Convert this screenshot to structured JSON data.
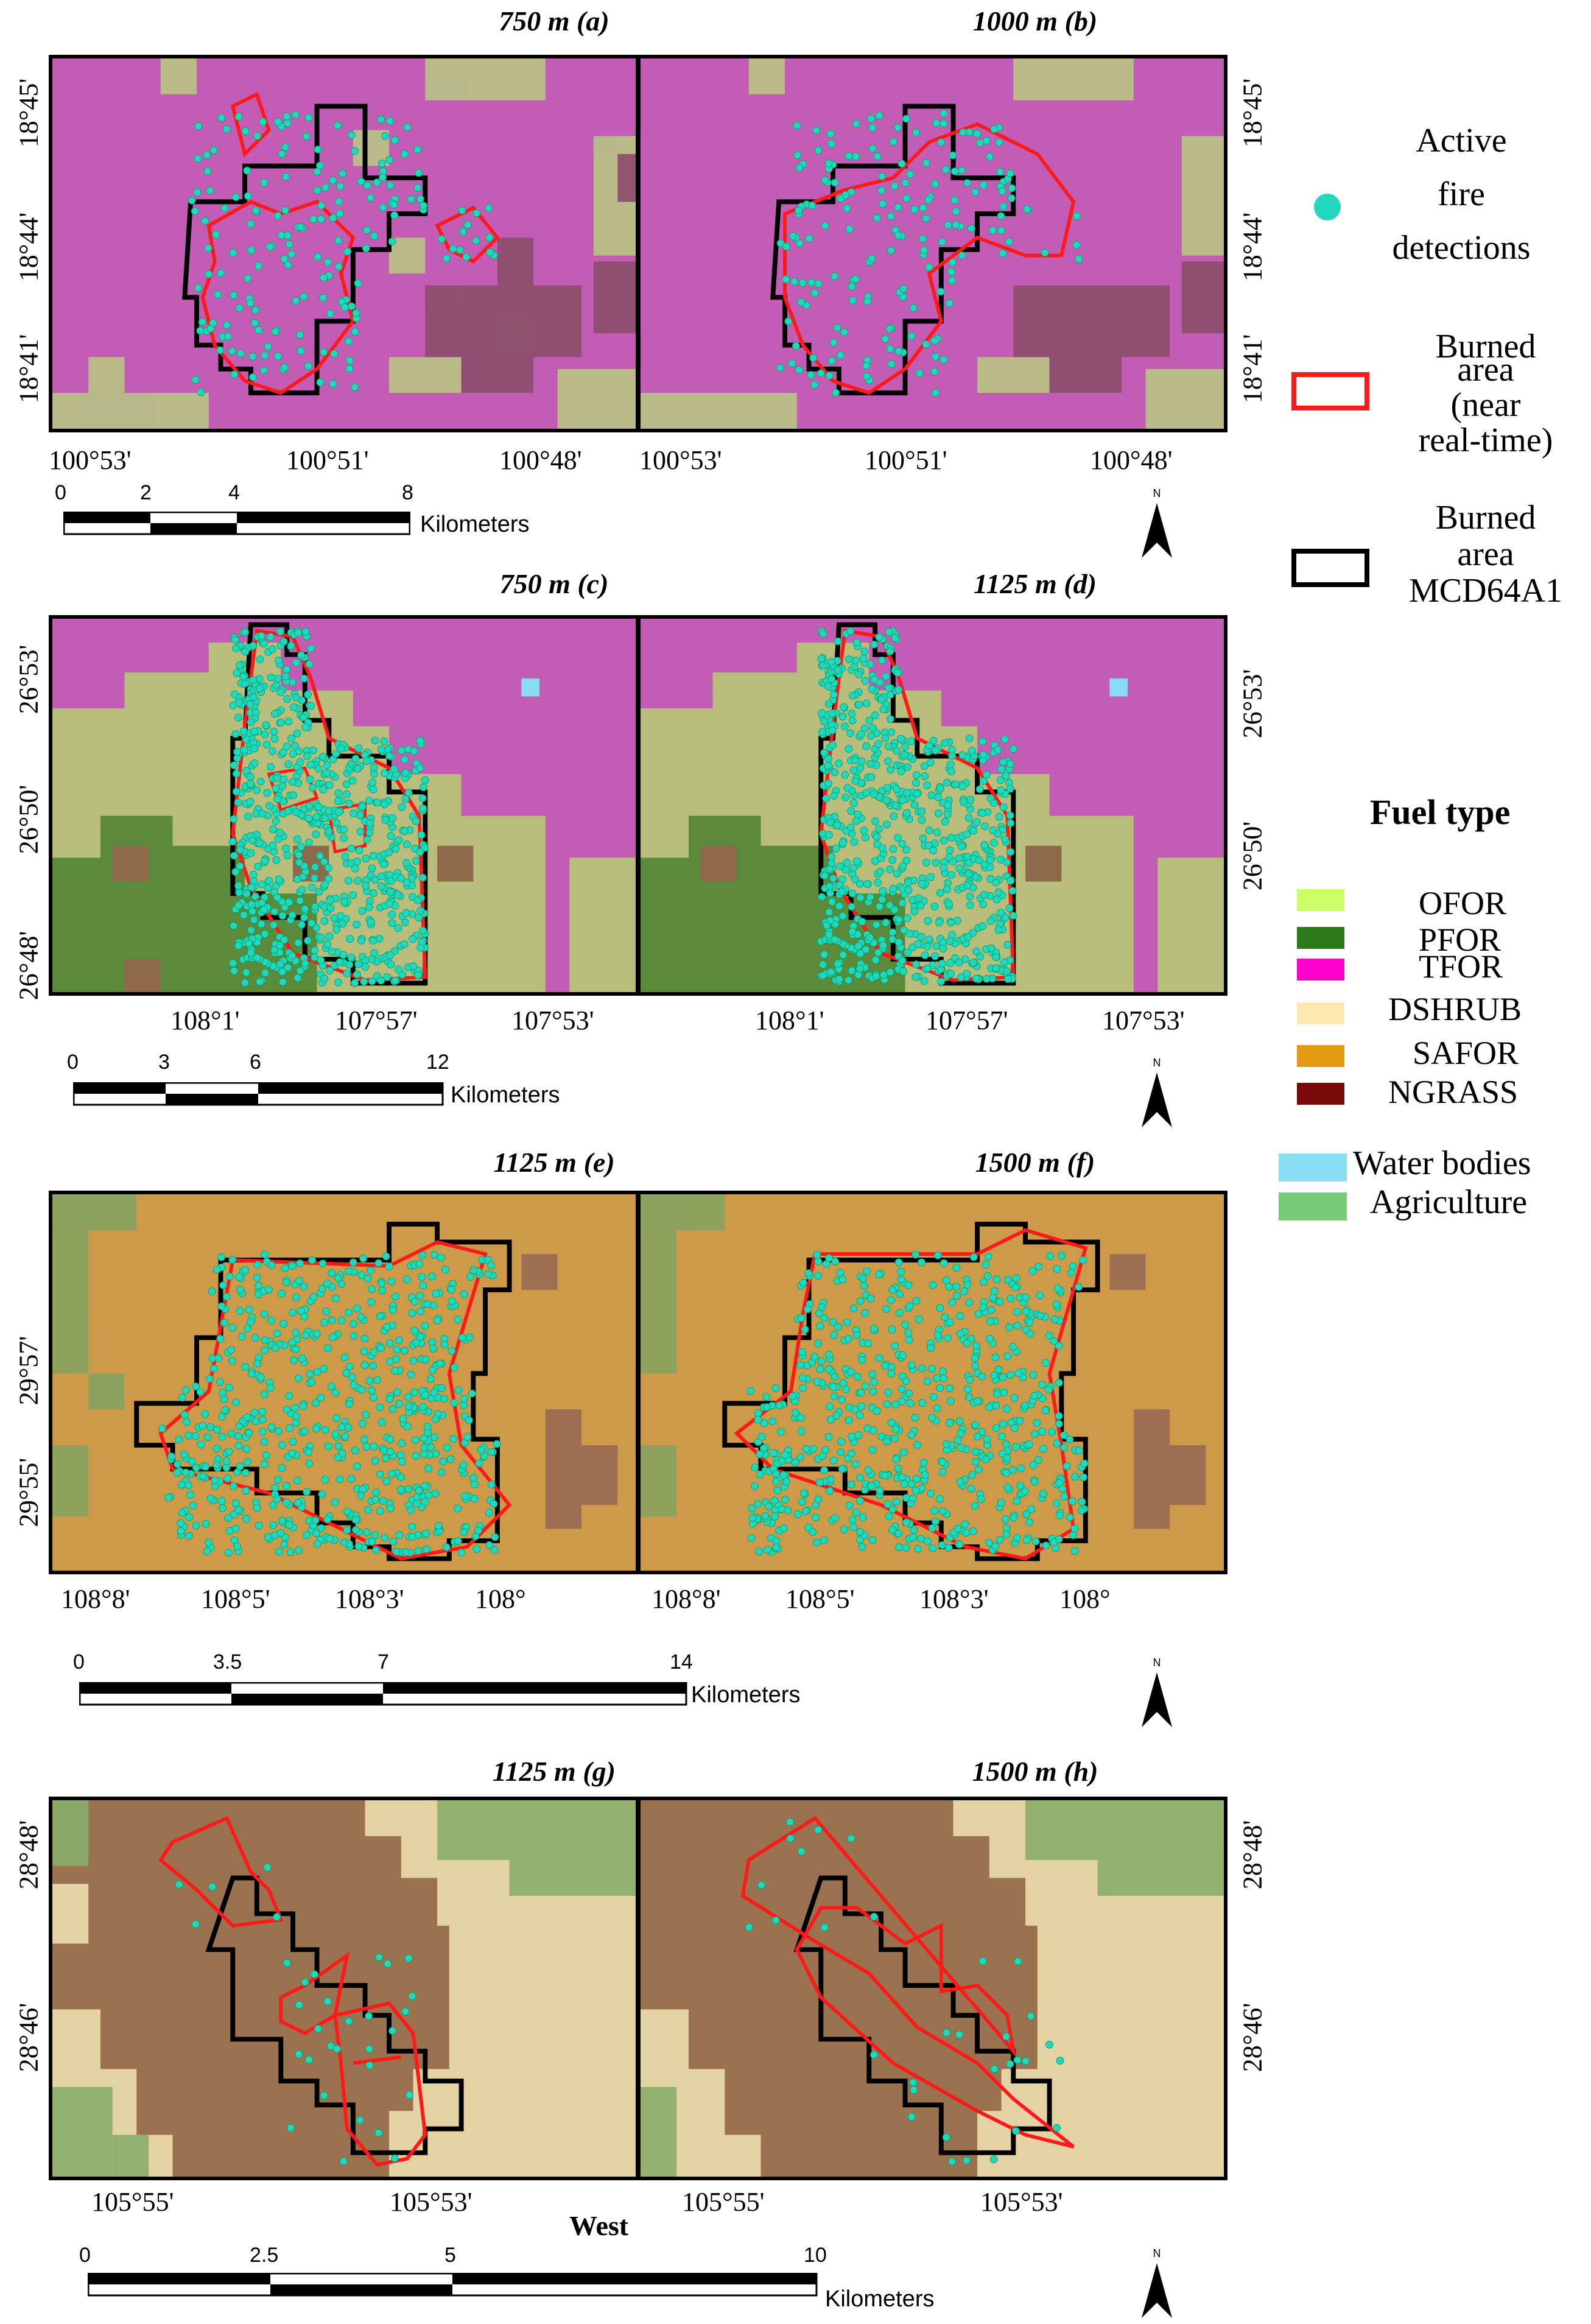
{
  "panels": {
    "a": {
      "title": "750 m (a)",
      "x_ticks": [
        "100°53'",
        "100°51'",
        "100°48'"
      ],
      "y_ticks": [
        "18°45'",
        "18°44'",
        "18°41'"
      ]
    },
    "b": {
      "title": "1000 m (b)",
      "x_ticks": [
        "100°53'",
        "100°51'",
        "100°48'"
      ],
      "y_ticks": [
        "18°45'",
        "18°44'",
        "18°41'"
      ]
    },
    "c": {
      "title": "750 m (c)",
      "x_ticks": [
        "108°1'",
        "107°57'",
        "107°53'"
      ],
      "y_ticks": [
        "26°53'",
        "26°50'",
        "26°48'"
      ]
    },
    "d": {
      "title": "1125 m (d)",
      "x_ticks": [
        "108°1'",
        "107°57'",
        "107°53'"
      ],
      "y_ticks": [
        "26°53'",
        "26°50'"
      ]
    },
    "e": {
      "title": "1125 m (e)",
      "x_ticks": [
        "108°8'",
        "108°5'",
        "108°3'",
        "108°"
      ],
      "y_ticks": [
        "29°57'",
        "29°55'"
      ]
    },
    "f": {
      "title": "1500 m (f)",
      "x_ticks": [
        "108°8'",
        "108°5'",
        "108°3'",
        "108°"
      ]
    },
    "g": {
      "title": "1125 m (g)",
      "x_ticks": [
        "105°55'",
        "105°53'"
      ],
      "y_ticks": [
        "28°48'",
        "28°46'"
      ]
    },
    "h": {
      "title": "1500 m (h)",
      "x_ticks": [
        "105°55'",
        "105°53'"
      ],
      "y_ticks": [
        "28°48'",
        "28°46'"
      ]
    }
  },
  "bottom_label": "West",
  "scalebars": [
    {
      "ticks": [
        "0",
        "2",
        "4",
        "8"
      ],
      "unit": "Kilometers"
    },
    {
      "ticks": [
        "0",
        "3",
        "6",
        "12"
      ],
      "unit": "Kilometers"
    },
    {
      "ticks": [
        "0",
        "3.5",
        "7",
        "14"
      ],
      "unit": "Kilometers"
    },
    {
      "ticks": [
        "0",
        "2.5",
        "5",
        "10"
      ],
      "unit": "Kilometers"
    }
  ],
  "north_label": "N",
  "legend": {
    "active_fire": [
      "Active",
      "fire",
      "detections"
    ],
    "burned_nrt": [
      "Burned",
      "area",
      "(near",
      "real-time)"
    ],
    "burned_mcd": [
      "Burned",
      "area",
      "MCD64A1"
    ],
    "fuel_title": "Fuel type",
    "fuel_types": [
      {
        "label": "OFOR",
        "color": "#ccff66"
      },
      {
        "label": "PFOR",
        "color": "#2d7a1a"
      },
      {
        "label": "TFOR",
        "color": "#ff00cc"
      },
      {
        "label": "DSHRUB",
        "color": "#fde8b0"
      },
      {
        "label": "SAFOR",
        "color": "#e39a10"
      },
      {
        "label": "NGRASS",
        "color": "#7a0a0a"
      }
    ],
    "other_classes": [
      {
        "label": "Water bodies",
        "color": "#88ddf2"
      },
      {
        "label": "Agriculture",
        "color": "#77cc77"
      }
    ]
  },
  "colors": {
    "fire": "#22d6c0",
    "nrt": "#ff1a1a",
    "mcd": "#000000"
  }
}
